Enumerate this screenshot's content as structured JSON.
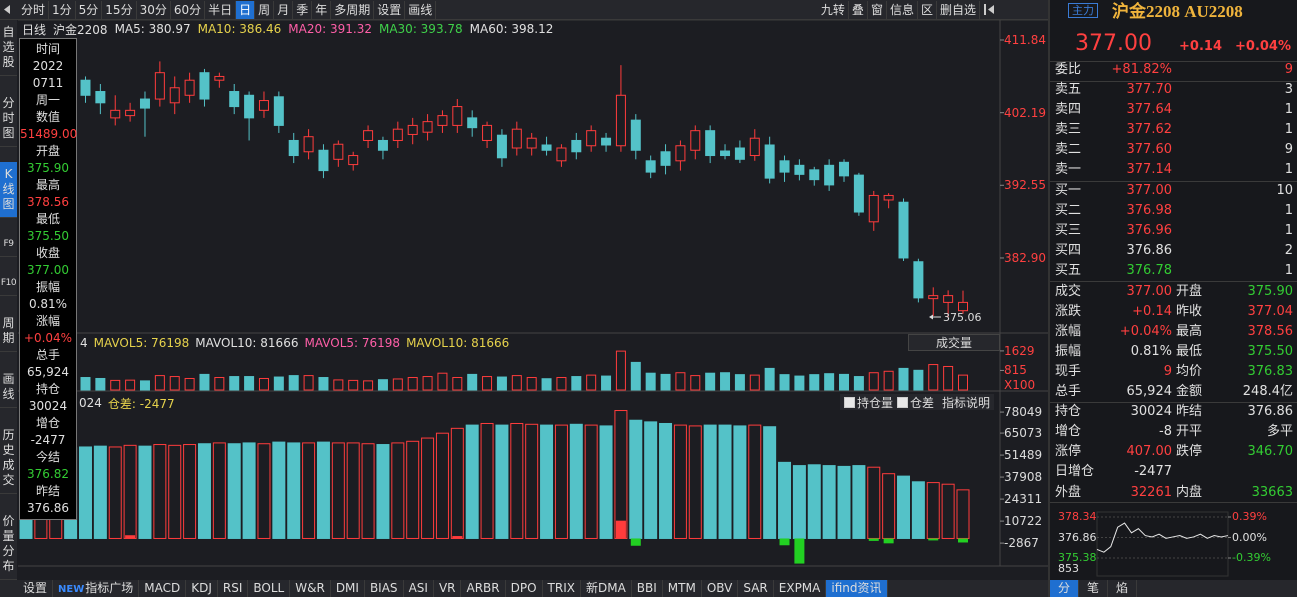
{
  "toolbar": {
    "left": [
      "分时",
      "1分",
      "5分",
      "15分",
      "30分",
      "60分",
      "半日",
      "日",
      "周",
      "月",
      "季",
      "年",
      "多周期",
      "设置",
      "画线"
    ],
    "selected": "日",
    "right": [
      "九转",
      "叠",
      "窗",
      "信息",
      "区",
      "删自选"
    ]
  },
  "sidebar": {
    "items": [
      "自选股",
      "分时图",
      "K线图",
      "F9",
      "F10",
      "周期",
      "画线",
      "历史成交",
      "价量分布"
    ],
    "selected": "K线图"
  },
  "legend": [
    {
      "text": "日线",
      "color": "#e0e0e0"
    },
    {
      "text": "沪金2208",
      "color": "#e0e0e0"
    },
    {
      "text": "MA5: 380.97",
      "color": "#e0e0e0"
    },
    {
      "text": "MA10: 386.46",
      "color": "#e6d24c"
    },
    {
      "text": "MA20: 391.32",
      "color": "#ff5fa8"
    },
    {
      "text": "MA30: 393.78",
      "color": "#3fd14a"
    },
    {
      "text": "MA60: 398.12",
      "color": "#e0e0e0"
    }
  ],
  "info_box": [
    {
      "text": "时间",
      "color": "#e0e0e0"
    },
    {
      "text": "2022",
      "color": "#e0e0e0"
    },
    {
      "text": "0711",
      "color": "#e0e0e0"
    },
    {
      "text": "周一",
      "color": "#e0e0e0"
    },
    {
      "text": "数值",
      "color": "#e0e0e0"
    },
    {
      "text": "51489.00",
      "color": "#ff4040"
    },
    {
      "text": "开盘",
      "color": "#e0e0e0"
    },
    {
      "text": "375.90",
      "color": "#33cc33"
    },
    {
      "text": "最高",
      "color": "#e0e0e0"
    },
    {
      "text": "378.56",
      "color": "#ff4040"
    },
    {
      "text": "最低",
      "color": "#e0e0e0"
    },
    {
      "text": "375.50",
      "color": "#33cc33"
    },
    {
      "text": "收盘",
      "color": "#e0e0e0"
    },
    {
      "text": "377.00",
      "color": "#33cc33"
    },
    {
      "text": "振幅",
      "color": "#e0e0e0"
    },
    {
      "text": "0.81%",
      "color": "#e0e0e0"
    },
    {
      "text": "涨幅",
      "color": "#e0e0e0"
    },
    {
      "text": "+0.04%",
      "color": "#ff4040"
    },
    {
      "text": "总手",
      "color": "#e0e0e0"
    },
    {
      "text": "65,924",
      "color": "#e0e0e0"
    },
    {
      "text": "持仓",
      "color": "#e0e0e0"
    },
    {
      "text": "30024",
      "color": "#e0e0e0"
    },
    {
      "text": "增仓",
      "color": "#e0e0e0"
    },
    {
      "text": "-2477",
      "color": "#e0e0e0"
    },
    {
      "text": "今结",
      "color": "#e0e0e0"
    },
    {
      "text": "376.82",
      "color": "#33cc33"
    },
    {
      "text": "昨结",
      "color": "#e0e0e0"
    },
    {
      "text": "376.86",
      "color": "#e0e0e0"
    }
  ],
  "chart_data": {
    "type": "candlestick",
    "up_color": "#ff3c3c",
    "down_color": "#54c2c8",
    "candles": [
      [
        405,
        406,
        403.5,
        404.5
      ],
      [
        404.5,
        406,
        403,
        405.5
      ],
      [
        405.5,
        407,
        404.5,
        406
      ],
      [
        406,
        407.5,
        404,
        404.8
      ],
      [
        406.5,
        407,
        403.5,
        404.5
      ],
      [
        405,
        406,
        402,
        403.5
      ],
      [
        401.5,
        404.5,
        400.5,
        402.5
      ],
      [
        401.8,
        403.5,
        401,
        402.5
      ],
      [
        404,
        405,
        399,
        402.8
      ],
      [
        404,
        409,
        403,
        407.5
      ],
      [
        403.5,
        407,
        402,
        405.5
      ],
      [
        404.5,
        407.5,
        403.5,
        406.5
      ],
      [
        407.5,
        408,
        403,
        404
      ],
      [
        406.5,
        407.5,
        405.5,
        407
      ],
      [
        405,
        406,
        402,
        403
      ],
      [
        404.5,
        405,
        398.5,
        401.5
      ],
      [
        402.5,
        405,
        401.5,
        403.8
      ],
      [
        404.3,
        405,
        399.5,
        400.5
      ],
      [
        398.5,
        399.5,
        395.5,
        396.5
      ],
      [
        397,
        400,
        396,
        399
      ],
      [
        397.2,
        398,
        393.5,
        394.5
      ],
      [
        396,
        398.5,
        395,
        398
      ],
      [
        395.3,
        397,
        394.5,
        396.5
      ],
      [
        398.5,
        400.5,
        397.5,
        399.8
      ],
      [
        398.5,
        399,
        396,
        397.2
      ],
      [
        398.5,
        401,
        397.5,
        400
      ],
      [
        399.3,
        401.5,
        398,
        400.5
      ],
      [
        399.6,
        402,
        398.5,
        401
      ],
      [
        400.5,
        402.5,
        399.5,
        401.8
      ],
      [
        400.5,
        404,
        399.5,
        403
      ],
      [
        401.5,
        402.5,
        399,
        400.2
      ],
      [
        398.5,
        401,
        397.5,
        400.5
      ],
      [
        399.2,
        400,
        395,
        396.2
      ],
      [
        397.5,
        401,
        396.5,
        400
      ],
      [
        397.5,
        399.5,
        396.5,
        398.8
      ],
      [
        397.9,
        399,
        396.5,
        397.2
      ],
      [
        395.8,
        398,
        395,
        397.5
      ],
      [
        398.5,
        399.5,
        396,
        397
      ],
      [
        397.8,
        400.5,
        397,
        399.8
      ],
      [
        398.8,
        399.5,
        397,
        397.9
      ],
      [
        397.8,
        408.5,
        397,
        404.5
      ],
      [
        401.2,
        402,
        396,
        397.2
      ],
      [
        395.8,
        396.5,
        393.5,
        394.3
      ],
      [
        397,
        398,
        394,
        395.2
      ],
      [
        395.8,
        398.5,
        394.5,
        397.8
      ],
      [
        397.2,
        400.5,
        396,
        399.8
      ],
      [
        399.8,
        400.5,
        395.5,
        396.5
      ],
      [
        397.1,
        398,
        396,
        396.5
      ],
      [
        397.5,
        398.5,
        395.5,
        396
      ],
      [
        396.5,
        400,
        395.8,
        398.8
      ],
      [
        397.9,
        399,
        392.8,
        393.5
      ],
      [
        395.8,
        396.5,
        393,
        394.3
      ],
      [
        395.2,
        396,
        393.2,
        394
      ],
      [
        394.6,
        395,
        392.5,
        393.3
      ],
      [
        395.2,
        396,
        391.8,
        392.6
      ],
      [
        395.6,
        396,
        393,
        393.8
      ],
      [
        393.9,
        394.2,
        388.5,
        389
      ],
      [
        387.7,
        391.8,
        386.5,
        391.2
      ],
      [
        390.6,
        391.5,
        389.5,
        391.2
      ],
      [
        390.3,
        390.8,
        382.5,
        382.9
      ],
      [
        382.4,
        382.8,
        377,
        377.6
      ],
      [
        377.5,
        379,
        375.2,
        377.9
      ],
      [
        377,
        378.6,
        375.06,
        377.9
      ],
      [
        375.9,
        378.56,
        375.5,
        377
      ]
    ],
    "ylim": [
      373.07,
      414.23
    ],
    "yticks": [
      {
        "value": 411.84,
        "label": "411.84"
      },
      {
        "value": 402.19,
        "label": "402.19"
      },
      {
        "value": 392.55,
        "label": "392.55"
      },
      {
        "value": 382.9,
        "label": "382.90"
      }
    ],
    "low_marker": 375.06
  },
  "volume": {
    "title_items": [
      {
        "text": "4",
        "color": "#e0e0e0"
      },
      {
        "text": "MAVOL5: 76198",
        "color": "#e6d24c"
      },
      {
        "text": "MAVOL10: 81666",
        "color": "#e0e0e0"
      },
      {
        "text": "MAVOL5: 76198",
        "color": "#ff5fa8"
      },
      {
        "text": "MAVOL10: 81666",
        "color": "#e6d24c"
      }
    ],
    "selector": "成交量",
    "values": [
      420,
      380,
      450,
      400,
      520,
      480,
      400,
      410,
      380,
      600,
      560,
      480,
      650,
      520,
      560,
      560,
      480,
      540,
      600,
      600,
      520,
      420,
      400,
      380,
      430,
      460,
      520,
      560,
      700,
      520,
      650,
      560,
      540,
      600,
      520,
      470,
      520,
      560,
      620,
      580,
      1620,
      1150,
      700,
      650,
      720,
      600,
      700,
      720,
      640,
      620,
      900,
      640,
      580,
      640,
      680,
      650,
      560,
      720,
      780,
      900,
      820,
      1060,
      980,
      620
    ],
    "ylim": [
      0,
      1750
    ],
    "yticks": [
      1629,
      815
    ],
    "unit": "X100"
  },
  "open_interest": {
    "title_items": [
      {
        "text": "024",
        "color": "#e0e0e0"
      },
      {
        "text": "仓差: -2477",
        "color": "#e6d24c"
      }
    ],
    "options": [
      "持仓量",
      "仓差"
    ],
    "help": "指标说明",
    "values": [
      42800,
      45000,
      55000,
      56000,
      56500,
      57000,
      56500,
      57500,
      57000,
      58000,
      57500,
      58000,
      58500,
      59000,
      58500,
      59000,
      58500,
      59500,
      59000,
      59000,
      59500,
      59000,
      59000,
      58500,
      58000,
      59000,
      60000,
      62000,
      65000,
      68000,
      70000,
      71000,
      70000,
      71000,
      70500,
      70000,
      70000,
      70500,
      70000,
      69500,
      79000,
      73000,
      72000,
      71000,
      70000,
      69500,
      70000,
      70000,
      69500,
      70000,
      69000,
      47000,
      45000,
      45500,
      45000,
      44500,
      45000,
      44000,
      40000,
      38500,
      35000,
      34500,
      33500,
      30024
    ],
    "changes": [
      0,
      0,
      0,
      0,
      0,
      0,
      0,
      2000,
      0,
      0,
      0,
      0,
      0,
      0,
      0,
      0,
      0,
      0,
      0,
      0,
      0,
      0,
      0,
      0,
      0,
      0,
      0,
      0,
      0,
      1500,
      0,
      0,
      0,
      0,
      0,
      0,
      0,
      0,
      0,
      0,
      11000,
      -4500,
      0,
      0,
      0,
      0,
      0,
      0,
      0,
      0,
      0,
      -4200,
      -15500,
      0,
      0,
      0,
      0,
      -1500,
      -3000,
      0,
      0,
      -1200,
      0,
      -2477
    ],
    "change_up_color": "#ff3c3c",
    "change_down_color": "#22d022",
    "ylim": [
      -17000,
      85500
    ],
    "yticks": [
      78049,
      65073,
      51489,
      37908,
      24311,
      10722,
      -2867
    ]
  },
  "bottom_tabs": {
    "items": [
      {
        "text": "设置"
      },
      {
        "badge": "NEW",
        "text": "指标广场"
      },
      {
        "text": "MACD"
      },
      {
        "text": "KDJ"
      },
      {
        "text": "RSI"
      },
      {
        "text": "BOLL"
      },
      {
        "text": "W&R"
      },
      {
        "text": "DMI"
      },
      {
        "text": "BIAS"
      },
      {
        "text": "ASI"
      },
      {
        "text": "VR"
      },
      {
        "text": "ARBR"
      },
      {
        "text": "DPO"
      },
      {
        "text": "TRIX"
      },
      {
        "text": "新DMA"
      },
      {
        "text": "BBI"
      },
      {
        "text": "MTM"
      },
      {
        "text": "OBV"
      },
      {
        "text": "SAR"
      },
      {
        "text": "EXPMA"
      },
      {
        "text": "ifind资讯"
      }
    ],
    "selected": "ifind资讯"
  },
  "quote": {
    "badge": "主力",
    "title": "沪金2208 AU2208",
    "price": "377.00",
    "change": "+0.14",
    "change_pct": "+0.04%"
  },
  "order_book": {
    "ratio": {
      "label": "委比",
      "value": "+81.82%",
      "qty": "9",
      "color": "#ff4040"
    },
    "levels": [
      {
        "label": "卖五",
        "price": "377.70",
        "qty": "3",
        "color": "#ff4040"
      },
      {
        "label": "卖四",
        "price": "377.64",
        "qty": "1",
        "color": "#ff4040"
      },
      {
        "label": "卖三",
        "price": "377.62",
        "qty": "1",
        "color": "#ff4040"
      },
      {
        "label": "卖二",
        "price": "377.60",
        "qty": "9",
        "color": "#ff4040"
      },
      {
        "label": "卖一",
        "price": "377.14",
        "qty": "1",
        "color": "#ff4040"
      },
      {
        "label": "买一",
        "price": "377.00",
        "qty": "10",
        "color": "#ff4040"
      },
      {
        "label": "买二",
        "price": "376.98",
        "qty": "1",
        "color": "#ff4040"
      },
      {
        "label": "买三",
        "price": "376.96",
        "qty": "1",
        "color": "#ff4040"
      },
      {
        "label": "买四",
        "price": "376.86",
        "qty": "2",
        "color": "#e0e0e0"
      },
      {
        "label": "买五",
        "price": "376.78",
        "qty": "1",
        "color": "#33cc33"
      }
    ]
  },
  "stats": [
    {
      "label": "成交",
      "value": "377.00",
      "color": "#ff4040",
      "label2": "开盘",
      "value2": "375.90",
      "color2": "#33cc33"
    },
    {
      "label": "涨跌",
      "value": "+0.14",
      "color": "#ff4040",
      "label2": "昨收",
      "value2": "377.04",
      "color2": "#ff4040"
    },
    {
      "label": "涨幅",
      "value": "+0.04%",
      "color": "#ff4040",
      "label2": "最高",
      "value2": "378.56",
      "color2": "#ff4040"
    },
    {
      "label": "振幅",
      "value": "0.81%",
      "color": "#e0e0e0",
      "label2": "最低",
      "value2": "375.50",
      "color2": "#33cc33"
    },
    {
      "label": "现手",
      "value": "9",
      "color": "#ff4040",
      "label2": "均价",
      "value2": "376.83",
      "color2": "#33cc33"
    },
    {
      "label": "总手",
      "value": "65,924",
      "color": "#e0e0e0",
      "label2": "金额",
      "value2": "248.4亿",
      "color2": "#e0e0e0"
    },
    {
      "label": "持仓",
      "value": "30024",
      "color": "#e0e0e0",
      "label2": "昨结",
      "value2": "376.86",
      "color2": "#e0e0e0"
    },
    {
      "label": "增仓",
      "value": "-8",
      "color": "#e0e0e0",
      "label2": "开平",
      "value2": "多平",
      "color2": "#e0e0e0"
    },
    {
      "label": "涨停",
      "value": "407.00",
      "color": "#ff4040",
      "label2": "跌停",
      "value2": "346.70",
      "color2": "#33cc33"
    },
    {
      "label": "日增仓",
      "value": "-2477",
      "color": "#e0e0e0"
    },
    {
      "label": "外盘",
      "value": "32261",
      "color": "#ff4040",
      "label2": "内盘",
      "value2": "33663",
      "color2": "#33cc33"
    }
  ],
  "mini_chart": {
    "prices": [
      376.0,
      375.8,
      376.2,
      377.6,
      377.9,
      377.2,
      377.5,
      377.0,
      376.9,
      377.1,
      376.8,
      376.9,
      377.0,
      376.8,
      376.9,
      377.1,
      376.8,
      377.0,
      376.9,
      377.0
    ],
    "ylim": [
      375.38,
      378.34
    ],
    "yticks": [
      378.34,
      376.86,
      375.38
    ],
    "ytick_colors": [
      "#ff4040",
      "#e0e0e0",
      "#33cc33"
    ],
    "y2lim": [
      -0.39,
      0.39
    ],
    "y2ticks": [
      {
        "value": 0.39,
        "label": "0.39%"
      },
      {
        "value": 0,
        "label": "0.00%"
      },
      {
        "value": -0.39,
        "label": "-0.39%"
      }
    ],
    "volume_label": "853"
  },
  "right_tabs": {
    "items": [
      "分",
      "笔",
      "焰"
    ],
    "selected": "分"
  }
}
